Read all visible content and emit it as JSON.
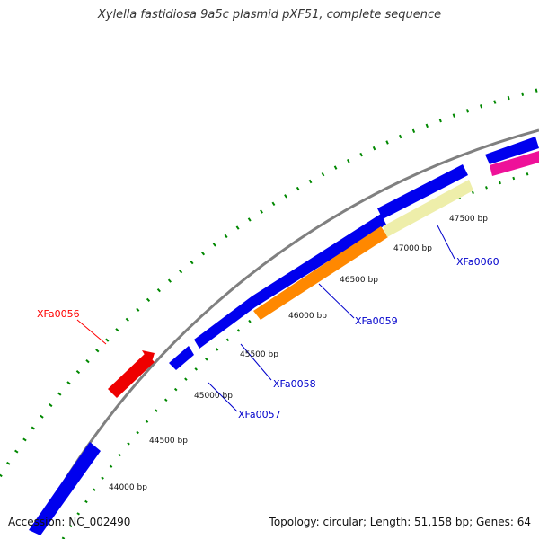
{
  "title": "Xylella fastidiosa 9a5c plasmid pXF51, complete sequence",
  "footer": {
    "accession": "Accession: NC_002490",
    "summary": "Topology: circular; Length: 51,158 bp; Genes: 64"
  },
  "ruler": {
    "unit": "bp",
    "labels": [
      "44000 bp",
      "44500 bp",
      "45000 bp",
      "45500 bp",
      "46000 bp",
      "46500 bp",
      "47000 bp",
      "47500 bp"
    ]
  },
  "gene_labels": [
    {
      "text": "XFa0056",
      "color": "#ff0000"
    },
    {
      "text": "XFa0057",
      "color": "#0000cc"
    },
    {
      "text": "XFa0058",
      "color": "#0000cc"
    },
    {
      "text": "XFa0059",
      "color": "#0000cc"
    },
    {
      "text": "XFa0060",
      "color": "#0000cc"
    }
  ],
  "colors": {
    "cds": "#0000ee",
    "highlight_red": "#ee0000",
    "orange": "#ff8800",
    "pale_yellow": "#eeeeaa",
    "magenta": "#ee1199",
    "backbone": "#888888",
    "ticks": "#008800"
  }
}
